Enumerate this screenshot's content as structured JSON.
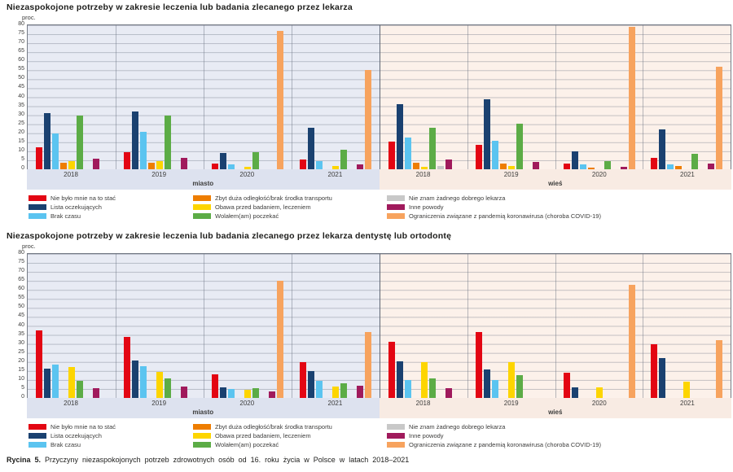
{
  "page": {
    "caption_label": "Rycina 5.",
    "caption_text": "Przyczyny niezaspokojonych potrzeb zdrowotnych osób od 16. roku życia w Polsce w latach 2018–2021"
  },
  "palette": {
    "miasto_plot_bg": "#e8ebf4",
    "miasto_band_bg": "#dde2ef",
    "wies_plot_bg": "#fcf1ea",
    "wies_band_bg": "#f8ebe3",
    "grid_line": "#646c7c",
    "plot_border": "#767c87"
  },
  "chart_data": [
    {
      "type": "bar",
      "title": "Niezaspokojone potrzeby w zakresie leczenia lub badania zlecanego przez lekarza",
      "ylabel": "proc.",
      "ylim": [
        0,
        80
      ],
      "ytick_step": 5,
      "grid": true,
      "legend_position": "bottom",
      "regions": [
        "miasto",
        "wieś"
      ],
      "years": [
        "2018",
        "2019",
        "2020",
        "2021"
      ],
      "series": [
        {
          "name": "Nie było mnie na to stać",
          "color": "#e30613"
        },
        {
          "name": "Lista oczekujących",
          "color": "#1a4170"
        },
        {
          "name": "Brak czasu",
          "color": "#5bc4f0"
        },
        {
          "name": "Zbyt duża odległość/brak środka transportu",
          "color": "#ee7d00"
        },
        {
          "name": "Obawa przed badaniem, leczeniem",
          "color": "#fdd500"
        },
        {
          "name": "Wolałem(am) poczekać",
          "color": "#5cac46"
        },
        {
          "name": "Nie znam żadnego dobrego lekarza",
          "color": "#c8c8c8"
        },
        {
          "name": "Inne powody",
          "color": "#a01a5c"
        },
        {
          "name": "Ograniczenia związane z pandemią koronawirusa (choroba COVID-19)",
          "color": "#f7a35e"
        }
      ],
      "values": {
        "miasto": {
          "2018": [
            12,
            31,
            20,
            3.5,
            4.5,
            30,
            0,
            6,
            0
          ],
          "2019": [
            9.5,
            32,
            21,
            3.5,
            4.5,
            30,
            0,
            6.5,
            0
          ],
          "2020": [
            3,
            9,
            2.5,
            0,
            1.5,
            9.5,
            0,
            0,
            77
          ],
          "2021": [
            5.5,
            23,
            4.5,
            0,
            2,
            11,
            0,
            2.5,
            55
          ]
        },
        "wieś": {
          "2018": [
            15.5,
            36,
            17.5,
            3.5,
            1.5,
            23,
            2,
            5.5,
            0
          ],
          "2019": [
            13.5,
            39,
            16,
            3,
            2,
            25.5,
            0,
            4,
            0
          ],
          "2020": [
            3,
            10,
            2.5,
            1,
            0,
            4.5,
            0,
            1.5,
            79
          ],
          "2021": [
            6.5,
            22,
            2.5,
            2,
            0,
            8.5,
            0,
            3,
            57
          ]
        }
      }
    },
    {
      "type": "bar",
      "title": "Niezaspokojone potrzeby w zakresie leczenia lub badania zlecanego przez lekarza dentystę lub ortodontę",
      "ylabel": "proc.",
      "ylim": [
        0,
        80
      ],
      "ytick_step": 5,
      "grid": true,
      "legend_position": "bottom",
      "regions": [
        "miasto",
        "wieś"
      ],
      "years": [
        "2018",
        "2019",
        "2020",
        "2021"
      ],
      "series": [
        {
          "name": "Nie było mnie na to stać",
          "color": "#e30613"
        },
        {
          "name": "Lista oczekujących",
          "color": "#1a4170"
        },
        {
          "name": "Brak czasu",
          "color": "#5bc4f0"
        },
        {
          "name": "Zbyt duża odległość/brak środka transportu",
          "color": "#ee7d00"
        },
        {
          "name": "Obawa przed badaniem, leczeniem",
          "color": "#fdd500"
        },
        {
          "name": "Wolałem(am) poczekać",
          "color": "#5cac46"
        },
        {
          "name": "Nie znam żadnego dobrego lekarza",
          "color": "#c8c8c8"
        },
        {
          "name": "Inne powody",
          "color": "#a01a5c"
        },
        {
          "name": "Ograniczenia związane z pandemią koronawirusa (choroba COVID-19)",
          "color": "#f7a35e"
        }
      ],
      "values": {
        "miasto": {
          "2018": [
            37.5,
            16.5,
            18.5,
            0,
            17,
            9.5,
            0,
            5.5,
            0
          ],
          "2019": [
            34,
            21,
            17.5,
            0,
            14.5,
            11,
            0,
            6.5,
            0
          ],
          "2020": [
            13,
            6,
            5,
            0,
            4.5,
            5.5,
            0,
            3.5,
            65
          ],
          "2021": [
            20,
            15,
            9.5,
            0,
            6.5,
            8,
            0,
            7,
            36.5
          ]
        },
        "wieś": {
          "2018": [
            31,
            20.5,
            10,
            0,
            20,
            11,
            0,
            5.5,
            0
          ],
          "2019": [
            36.5,
            16,
            10,
            0,
            20,
            12.5,
            0,
            0,
            0
          ],
          "2020": [
            14,
            6,
            0,
            0,
            6,
            0,
            0,
            0,
            63
          ],
          "2021": [
            30,
            22,
            0,
            0,
            9,
            0,
            0,
            0,
            32
          ]
        }
      }
    }
  ]
}
